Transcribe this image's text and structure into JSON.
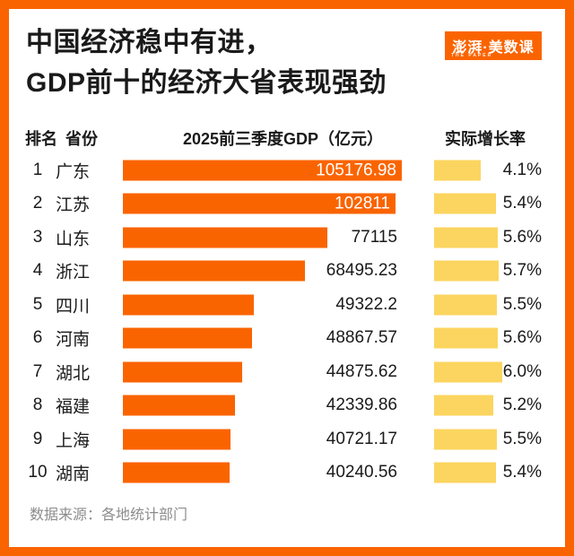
{
  "header": {
    "title_line1": "中国经济稳中有进，",
    "title_line2": "GDP前十的经济大省表现强劲",
    "logo": {
      "name": "澎湃·美数课",
      "subtext": "THE PAPER"
    }
  },
  "columns": {
    "rank": "排名",
    "province": "省份",
    "gdp": "2025前三季度GDP（亿元）",
    "growth": "实际增长率"
  },
  "footer": {
    "source": "数据来源：各地统计部门"
  },
  "colors": {
    "accent_orange": "#FA6400",
    "bar_yellow": "#FBD55F",
    "title_black": "#1A1A1A",
    "source_gray": "#8C8C8C"
  },
  "chart_data": {
    "type": "bar",
    "title": "中国经济稳中有进，GDP前十的经济大省表现强劲",
    "xlabel": "2025前三季度GDP（亿元）",
    "legend_position": "none",
    "grid": false,
    "categories": [
      "广东",
      "江苏",
      "山东",
      "浙江",
      "四川",
      "河南",
      "湖北",
      "福建",
      "上海",
      "湖南"
    ],
    "series": [
      {
        "name": "2025前三季度GDP（亿元）",
        "values": [
          105176.98,
          102811,
          77115,
          68495.23,
          49322.2,
          48867.57,
          44875.62,
          42339.86,
          40721.17,
          40240.56
        ]
      },
      {
        "name": "实际增长率",
        "values": [
          4.1,
          5.4,
          5.6,
          5.7,
          5.5,
          5.6,
          6.0,
          5.2,
          5.5,
          5.4
        ]
      }
    ],
    "rows": [
      {
        "rank": "1",
        "province": "广东",
        "gdp": 105176.98,
        "gdp_label": "105176.98",
        "growth": 4.1,
        "growth_label": "4.1%"
      },
      {
        "rank": "2",
        "province": "江苏",
        "gdp": 102811,
        "gdp_label": "102811",
        "growth": 5.4,
        "growth_label": "5.4%"
      },
      {
        "rank": "3",
        "province": "山东",
        "gdp": 77115,
        "gdp_label": "77115",
        "growth": 5.6,
        "growth_label": "5.6%"
      },
      {
        "rank": "4",
        "province": "浙江",
        "gdp": 68495.23,
        "gdp_label": "68495.23",
        "growth": 5.7,
        "growth_label": "5.7%"
      },
      {
        "rank": "5",
        "province": "四川",
        "gdp": 49322.2,
        "gdp_label": "49322.2",
        "growth": 5.5,
        "growth_label": "5.5%"
      },
      {
        "rank": "6",
        "province": "河南",
        "gdp": 48867.57,
        "gdp_label": "48867.57",
        "growth": 5.6,
        "growth_label": "5.6%"
      },
      {
        "rank": "7",
        "province": "湖北",
        "gdp": 44875.62,
        "gdp_label": "44875.62",
        "growth": 6.0,
        "growth_label": "6.0%"
      },
      {
        "rank": "8",
        "province": "福建",
        "gdp": 42339.86,
        "gdp_label": "42339.86",
        "growth": 5.2,
        "growth_label": "5.2%"
      },
      {
        "rank": "9",
        "province": "上海",
        "gdp": 40721.17,
        "gdp_label": "40721.17",
        "growth": 5.5,
        "growth_label": "5.5%"
      },
      {
        "rank": "10",
        "province": "湖南",
        "gdp": 40240.56,
        "gdp_label": "40240.56",
        "growth": 5.4,
        "growth_label": "5.4%"
      }
    ]
  }
}
